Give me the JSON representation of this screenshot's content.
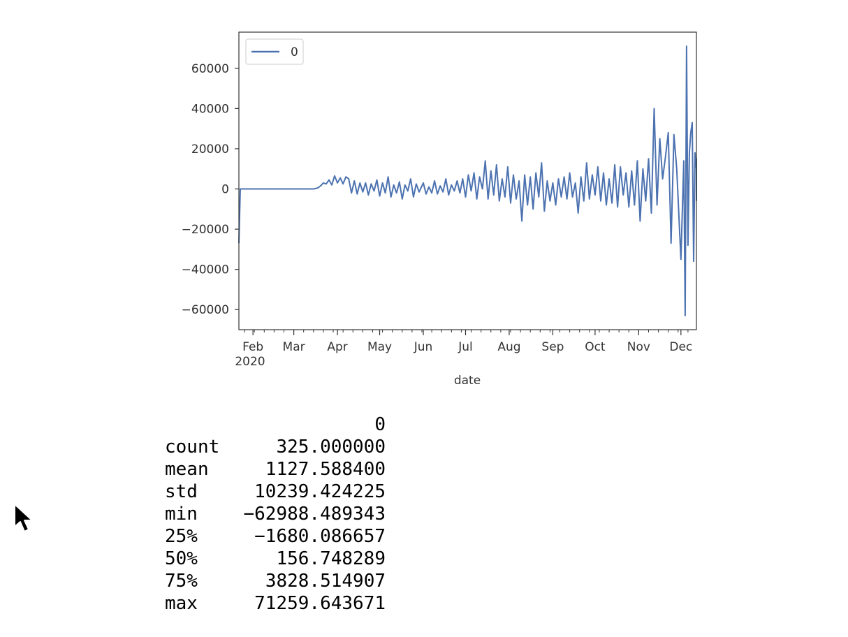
{
  "chart_data": {
    "type": "line",
    "xlabel": "date",
    "x_tick_labels": [
      "Feb",
      "Mar",
      "Apr",
      "May",
      "Jun",
      "Jul",
      "Aug",
      "Sep",
      "Oct",
      "Nov",
      "Dec"
    ],
    "x_year_label": "2020",
    "x_range": [
      "2020-01-22",
      "2020-12-12"
    ],
    "y_ticks": [
      -60000,
      -40000,
      -20000,
      0,
      20000,
      40000,
      60000
    ],
    "y_tick_labels": [
      "−60000",
      "−40000",
      "−20000",
      "0",
      "20000",
      "40000",
      "60000"
    ],
    "ylim": [
      -70000,
      78000
    ],
    "legend": {
      "position": "top-left",
      "entries": [
        "0"
      ]
    },
    "grid": false,
    "series": [
      {
        "name": "0",
        "color": "#4c72b0",
        "points": [
          [
            "2020-01-22",
            -27000
          ],
          [
            "2020-01-23",
            0
          ],
          [
            "2020-02-15",
            0
          ],
          [
            "2020-03-15",
            0
          ],
          [
            "2020-03-18",
            500
          ],
          [
            "2020-03-20",
            1500
          ],
          [
            "2020-03-22",
            3000
          ],
          [
            "2020-03-24",
            2500
          ],
          [
            "2020-03-26",
            4500
          ],
          [
            "2020-03-28",
            2000
          ],
          [
            "2020-03-30",
            6500
          ],
          [
            "2020-04-01",
            3000
          ],
          [
            "2020-04-03",
            5500
          ],
          [
            "2020-04-05",
            2500
          ],
          [
            "2020-04-07",
            6000
          ],
          [
            "2020-04-09",
            5000
          ],
          [
            "2020-04-11",
            -2000
          ],
          [
            "2020-04-13",
            4000
          ],
          [
            "2020-04-15",
            -2500
          ],
          [
            "2020-04-17",
            3000
          ],
          [
            "2020-04-19",
            -1500
          ],
          [
            "2020-04-21",
            3000
          ],
          [
            "2020-04-23",
            -3000
          ],
          [
            "2020-04-25",
            2500
          ],
          [
            "2020-04-27",
            -1000
          ],
          [
            "2020-04-29",
            4500
          ],
          [
            "2020-05-01",
            -3500
          ],
          [
            "2020-05-03",
            3000
          ],
          [
            "2020-05-05",
            -2000
          ],
          [
            "2020-05-07",
            6000
          ],
          [
            "2020-05-09",
            -4000
          ],
          [
            "2020-05-11",
            2000
          ],
          [
            "2020-05-13",
            -2000
          ],
          [
            "2020-05-15",
            3500
          ],
          [
            "2020-05-17",
            -5000
          ],
          [
            "2020-05-19",
            2000
          ],
          [
            "2020-05-21",
            -1000
          ],
          [
            "2020-05-23",
            5000
          ],
          [
            "2020-05-25",
            -4000
          ],
          [
            "2020-05-27",
            2500
          ],
          [
            "2020-05-29",
            -1500
          ],
          [
            "2020-06-01",
            3000
          ],
          [
            "2020-06-03",
            -2500
          ],
          [
            "2020-06-05",
            1000
          ],
          [
            "2020-06-07",
            -2000
          ],
          [
            "2020-06-09",
            4000
          ],
          [
            "2020-06-11",
            -2500
          ],
          [
            "2020-06-13",
            1500
          ],
          [
            "2020-06-15",
            -1500
          ],
          [
            "2020-06-17",
            5000
          ],
          [
            "2020-06-19",
            -3000
          ],
          [
            "2020-06-21",
            2000
          ],
          [
            "2020-06-23",
            -1000
          ],
          [
            "2020-06-25",
            4000
          ],
          [
            "2020-06-27",
            -2000
          ],
          [
            "2020-06-29",
            5000
          ],
          [
            "2020-07-01",
            -4000
          ],
          [
            "2020-07-03",
            7000
          ],
          [
            "2020-07-05",
            -1000
          ],
          [
            "2020-07-07",
            8000
          ],
          [
            "2020-07-09",
            -5000
          ],
          [
            "2020-07-11",
            6000
          ],
          [
            "2020-07-13",
            0
          ],
          [
            "2020-07-15",
            14000
          ],
          [
            "2020-07-17",
            -5000
          ],
          [
            "2020-07-19",
            9000
          ],
          [
            "2020-07-21",
            -3000
          ],
          [
            "2020-07-23",
            12000
          ],
          [
            "2020-07-25",
            -6000
          ],
          [
            "2020-07-27",
            5000
          ],
          [
            "2020-07-29",
            -4000
          ],
          [
            "2020-07-31",
            11000
          ],
          [
            "2020-08-02",
            -7000
          ],
          [
            "2020-08-04",
            7000
          ],
          [
            "2020-08-06",
            -5000
          ],
          [
            "2020-08-08",
            4000
          ],
          [
            "2020-08-10",
            -16000
          ],
          [
            "2020-08-12",
            7000
          ],
          [
            "2020-08-14",
            -8000
          ],
          [
            "2020-08-16",
            6000
          ],
          [
            "2020-08-18",
            -10000
          ],
          [
            "2020-08-20",
            8000
          ],
          [
            "2020-08-22",
            -4000
          ],
          [
            "2020-08-24",
            13000
          ],
          [
            "2020-08-26",
            -11000
          ],
          [
            "2020-08-28",
            4000
          ],
          [
            "2020-08-30",
            -6000
          ],
          [
            "2020-09-01",
            3000
          ],
          [
            "2020-09-03",
            -8000
          ],
          [
            "2020-09-05",
            5000
          ],
          [
            "2020-09-07",
            -4000
          ],
          [
            "2020-09-09",
            6000
          ],
          [
            "2020-09-11",
            -5000
          ],
          [
            "2020-09-13",
            8000
          ],
          [
            "2020-09-15",
            -4000
          ],
          [
            "2020-09-17",
            3000
          ],
          [
            "2020-09-19",
            -12000
          ],
          [
            "2020-09-21",
            6000
          ],
          [
            "2020-09-23",
            -6000
          ],
          [
            "2020-09-25",
            13000
          ],
          [
            "2020-09-27",
            -5000
          ],
          [
            "2020-09-29",
            7000
          ],
          [
            "2020-10-01",
            -3000
          ],
          [
            "2020-10-03",
            11000
          ],
          [
            "2020-10-05",
            -6000
          ],
          [
            "2020-10-07",
            8000
          ],
          [
            "2020-10-09",
            -8000
          ],
          [
            "2020-10-11",
            5000
          ],
          [
            "2020-10-13",
            -7000
          ],
          [
            "2020-10-15",
            12000
          ],
          [
            "2020-10-17",
            -9000
          ],
          [
            "2020-10-19",
            11000
          ],
          [
            "2020-10-21",
            -3000
          ],
          [
            "2020-10-23",
            8000
          ],
          [
            "2020-10-25",
            -9000
          ],
          [
            "2020-10-27",
            9000
          ],
          [
            "2020-10-29",
            -8000
          ],
          [
            "2020-10-31",
            14000
          ],
          [
            "2020-11-02",
            -16000
          ],
          [
            "2020-11-04",
            10000
          ],
          [
            "2020-11-06",
            -6000
          ],
          [
            "2020-11-08",
            15000
          ],
          [
            "2020-11-10",
            -12000
          ],
          [
            "2020-11-12",
            40000
          ],
          [
            "2020-11-14",
            -8000
          ],
          [
            "2020-11-16",
            25000
          ],
          [
            "2020-11-18",
            5000
          ],
          [
            "2020-11-20",
            16000
          ],
          [
            "2020-11-22",
            28000
          ],
          [
            "2020-11-24",
            -27000
          ],
          [
            "2020-11-26",
            27000
          ],
          [
            "2020-11-28",
            10000
          ],
          [
            "2020-12-01",
            -35000
          ],
          [
            "2020-12-03",
            14000
          ],
          [
            "2020-12-04",
            -63000
          ],
          [
            "2020-12-05",
            71000
          ],
          [
            "2020-12-06",
            -28000
          ],
          [
            "2020-12-07",
            18000
          ],
          [
            "2020-12-08",
            28000
          ],
          [
            "2020-12-09",
            33000
          ],
          [
            "2020-12-10",
            -36000
          ],
          [
            "2020-12-11",
            18000
          ],
          [
            "2020-12-12",
            10000
          ],
          [
            "2020-12-12",
            15000
          ],
          [
            "2020-12-12",
            -6000
          ]
        ]
      }
    ]
  },
  "stats_table": {
    "header": "0",
    "rows": [
      {
        "label": "count",
        "value": "325.000000"
      },
      {
        "label": "mean",
        "value": "1127.588400"
      },
      {
        "label": "std",
        "value": "10239.424225"
      },
      {
        "label": "min",
        "value": "−62988.489343"
      },
      {
        "label": "25%",
        "value": "−1680.086657"
      },
      {
        "label": "50%",
        "value": "156.748289"
      },
      {
        "label": "75%",
        "value": "3828.514907"
      },
      {
        "label": "max",
        "value": "71259.643671"
      }
    ]
  }
}
